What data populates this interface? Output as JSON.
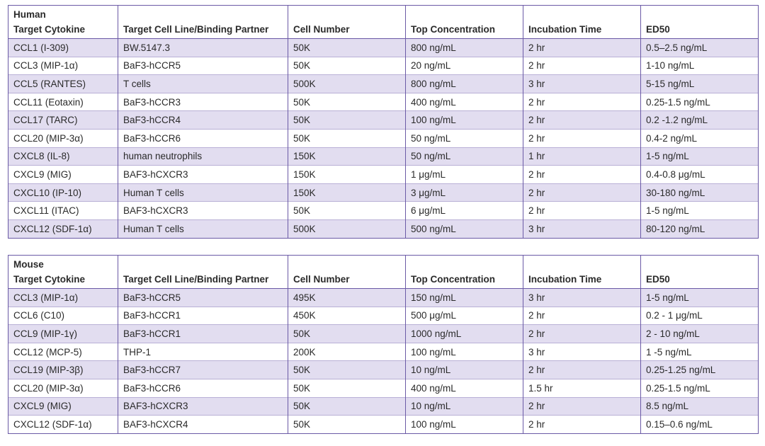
{
  "columns": [
    "Target Cytokine",
    "Target Cell Line/Binding Partner",
    "Cell Number",
    "Top Concentration",
    "Incubation Time",
    "ED50"
  ],
  "human": {
    "title": "Human",
    "rows": [
      [
        "CCL1 (I-309)",
        "BW.5147.3",
        "50K",
        "800 ng/mL",
        "2 hr",
        "0.5–2.5 ng/mL"
      ],
      [
        "CCL3 (MIP-1α)",
        "BaF3-hCCR5",
        "50K",
        "20 ng/mL",
        "2 hr",
        "1-10 ng/mL"
      ],
      [
        "CCL5 (RANTES)",
        "T cells",
        "500K",
        "800 ng/mL",
        "3 hr",
        "5-15 ng/mL"
      ],
      [
        "CCL11 (Eotaxin)",
        "BaF3-hCCR3",
        "50K",
        "400 ng/mL",
        "2 hr",
        "0.25-1.5 ng/mL"
      ],
      [
        "CCL17 (TARC)",
        "BaF3-hCCR4",
        "50K",
        "100 ng/mL",
        "2 hr",
        "0.2 -1.2 ng/mL"
      ],
      [
        "CCL20 (MIP-3α)",
        "BaF3-hCCR6",
        "50K",
        "50 ng/mL",
        "2 hr",
        "0.4-2 ng/mL"
      ],
      [
        "CXCL8 (IL-8)",
        "human neutrophils",
        "150K",
        "50 ng/mL",
        "1 hr",
        "1-5 ng/mL"
      ],
      [
        "CXCL9 (MIG)",
        "BAF3-hCXCR3",
        "150K",
        "1 μg/mL",
        "2 hr",
        "0.4-0.8 μg/mL"
      ],
      [
        "CXCL10 (IP-10)",
        "Human T cells",
        "150K",
        "3 μg/mL",
        "2 hr",
        "30-180 ng/mL"
      ],
      [
        "CXCL11 (ITAC)",
        "BAF3-hCXCR3",
        "50K",
        "6 μg/mL",
        "2 hr",
        "1-5 ng/mL"
      ],
      [
        "CXCL12 (SDF-1α)",
        "Human T cells",
        "500K",
        "500 ng/mL",
        "3 hr",
        "80-120 ng/mL"
      ]
    ]
  },
  "mouse": {
    "title": "Mouse",
    "rows": [
      [
        "CCL3 (MIP-1α)",
        "BaF3-hCCR5",
        "495K",
        "150 ng/mL",
        "3 hr",
        "1-5 ng/mL"
      ],
      [
        "CCL6 (C10)",
        "BaF3-hCCR1",
        "450K",
        "500 μg/mL",
        "2 hr",
        "0.2 - 1 μg/mL"
      ],
      [
        "CCL9 (MIP-1γ)",
        "BaF3-hCCR1",
        "50K",
        "1000 ng/mL",
        "2 hr",
        "2 - 10 ng/mL"
      ],
      [
        "CCL12 (MCP-5)",
        "THP-1",
        "200K",
        "100 ng/mL",
        "3 hr",
        "1 -5 ng/mL"
      ],
      [
        "CCL19 (MIP-3β)",
        "BaF3-hCCR7",
        "50K",
        "10 ng/mL",
        "2 hr",
        "0.25-1.25 ng/mL"
      ],
      [
        "CCL20 (MIP-3α)",
        "BaF3-hCCR6",
        "50K",
        "400 ng/mL",
        "1.5 hr",
        "0.25-1.5 ng/mL"
      ],
      [
        "CXCL9 (MIG)",
        "BAF3-hCXCR3",
        "50K",
        "10 ng/mL",
        "2 hr",
        "8.5 ng/mL"
      ],
      [
        "CXCL12 (SDF-1α)",
        "BAF3-hCXCR4",
        "50K",
        "100 ng/mL",
        "2 hr",
        " 0.15–0.6 ng/mL"
      ]
    ]
  }
}
